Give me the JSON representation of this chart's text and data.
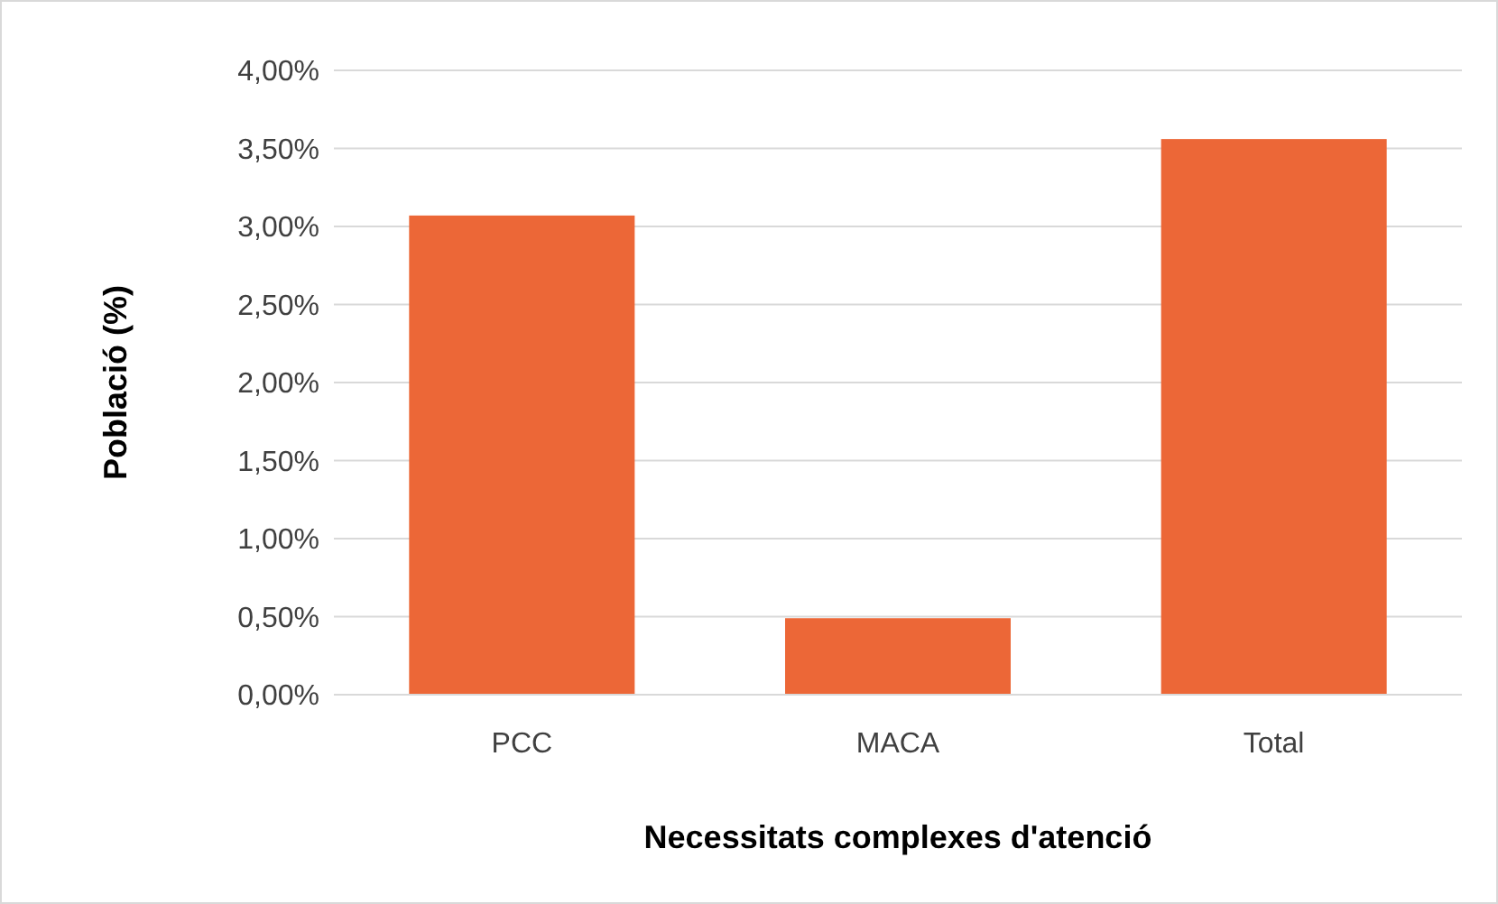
{
  "chart_data": {
    "type": "bar",
    "xlabel": "Necessitats complexes d'atenció",
    "ylabel": "Població (%)",
    "categories": [
      "PCC",
      "MACA",
      "Total"
    ],
    "values": [
      3.07,
      0.49,
      3.56
    ],
    "color": "#ec6737",
    "ylim": [
      0,
      4
    ],
    "yticks": [
      {
        "value": 0,
        "label": "0,00%"
      },
      {
        "value": 0.5,
        "label": "0,50%"
      },
      {
        "value": 1,
        "label": "1,00%"
      },
      {
        "value": 1.5,
        "label": "1,50%"
      },
      {
        "value": 2,
        "label": "2,00%"
      },
      {
        "value": 2.5,
        "label": "2,50%"
      },
      {
        "value": 3,
        "label": "3,00%"
      },
      {
        "value": 3.5,
        "label": "3,50%"
      },
      {
        "value": 4,
        "label": "4,00%"
      }
    ],
    "grid": "y"
  }
}
